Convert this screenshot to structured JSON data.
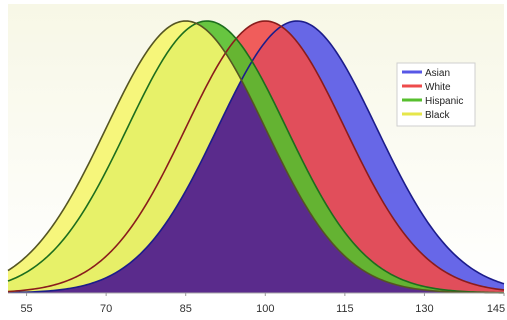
{
  "chart_data": {
    "type": "area",
    "x_ticks": [
      55,
      70,
      85,
      100,
      115,
      130,
      145
    ],
    "xlim": [
      51.5,
      145
    ],
    "grid": false,
    "legend_position": "right",
    "series": [
      {
        "name": "Asian",
        "color": "#5757e6",
        "line": "#1c1c8a",
        "mean": 106,
        "sd": 15
      },
      {
        "name": "White",
        "color": "#ee4b4b",
        "line": "#8a1c1c",
        "mean": 100,
        "sd": 15
      },
      {
        "name": "Hispanic",
        "color": "#57bf2e",
        "line": "#1d6e1d",
        "mean": 89,
        "sd": 15
      },
      {
        "name": "Black",
        "color": "#f5f56e",
        "line": "#555522",
        "mean": 85,
        "sd": 15
      }
    ],
    "overlap_color": "#5a2b8c"
  }
}
